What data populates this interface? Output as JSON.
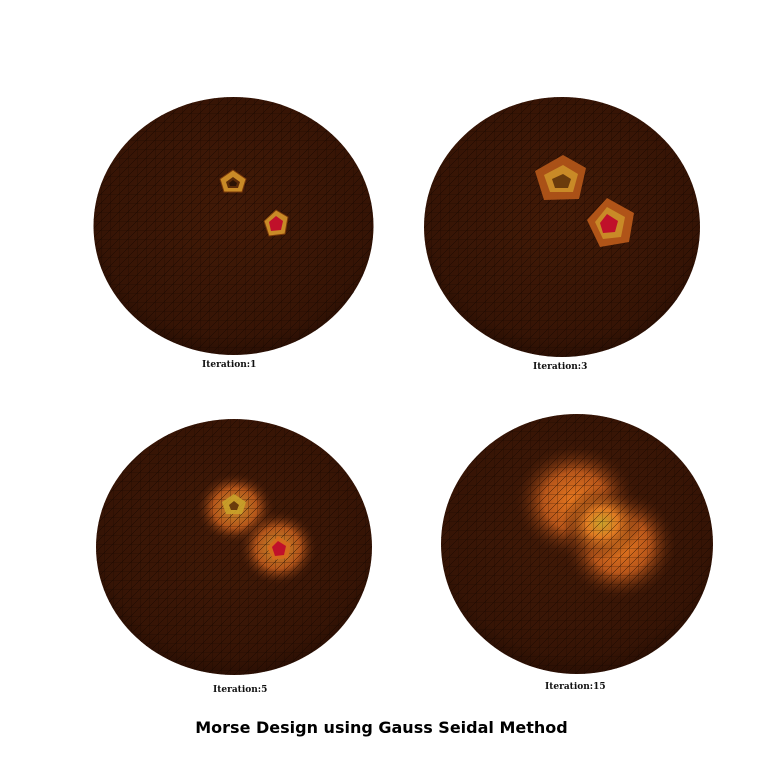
{
  "figure": {
    "title": "Morse Design using Gauss Seidal Method"
  },
  "panels": [
    {
      "caption": "Iteration:1"
    },
    {
      "caption": "Iteration:3"
    },
    {
      "caption": "Iteration:5"
    },
    {
      "caption": "Iteration:15"
    }
  ],
  "colors": {
    "sphere_base": "#3a1606",
    "sphere_dark_edge": "#1c0a02",
    "mesh_line": "#120500",
    "glow_orange": "#e8701e",
    "glow_yellow": "#c7a12a",
    "hot_red": "#c0102a"
  }
}
